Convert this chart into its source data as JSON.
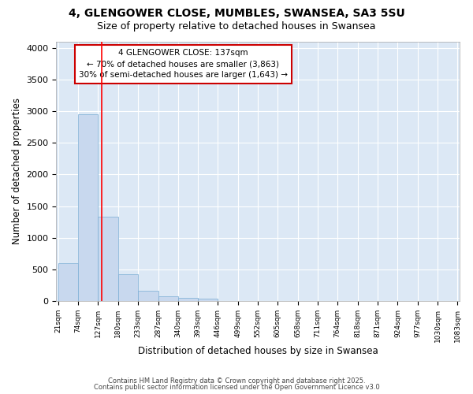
{
  "title_line1": "4, GLENGOWER CLOSE, MUMBLES, SWANSEA, SA3 5SU",
  "title_line2": "Size of property relative to detached houses in Swansea",
  "xlabel": "Distribution of detached houses by size in Swansea",
  "ylabel": "Number of detached properties",
  "bar_edges": [
    21,
    74,
    127,
    180,
    233,
    287,
    340,
    393,
    446,
    499,
    552,
    605,
    658,
    711,
    764,
    818,
    871,
    924,
    977,
    1030,
    1083
  ],
  "bar_heights": [
    600,
    2950,
    1330,
    420,
    160,
    75,
    50,
    35,
    5,
    2,
    1,
    1,
    0,
    0,
    0,
    0,
    0,
    0,
    0,
    0
  ],
  "bar_color": "#c8d8ee",
  "bar_edgecolor": "#7aadd4",
  "bg_color": "#dce8f5",
  "fig_bg_color": "#ffffff",
  "grid_color": "#ffffff",
  "red_line_x": 137,
  "annotation_title": "4 GLENGOWER CLOSE: 137sqm",
  "annotation_line2": "← 70% of detached houses are smaller (3,863)",
  "annotation_line3": "30% of semi-detached houses are larger (1,643) →",
  "annotation_border_color": "#cc0000",
  "ylim": [
    0,
    4100
  ],
  "yticks": [
    0,
    500,
    1000,
    1500,
    2000,
    2500,
    3000,
    3500,
    4000
  ],
  "footer_line1": "Contains HM Land Registry data © Crown copyright and database right 2025.",
  "footer_line2": "Contains public sector information licensed under the Open Government Licence v3.0"
}
